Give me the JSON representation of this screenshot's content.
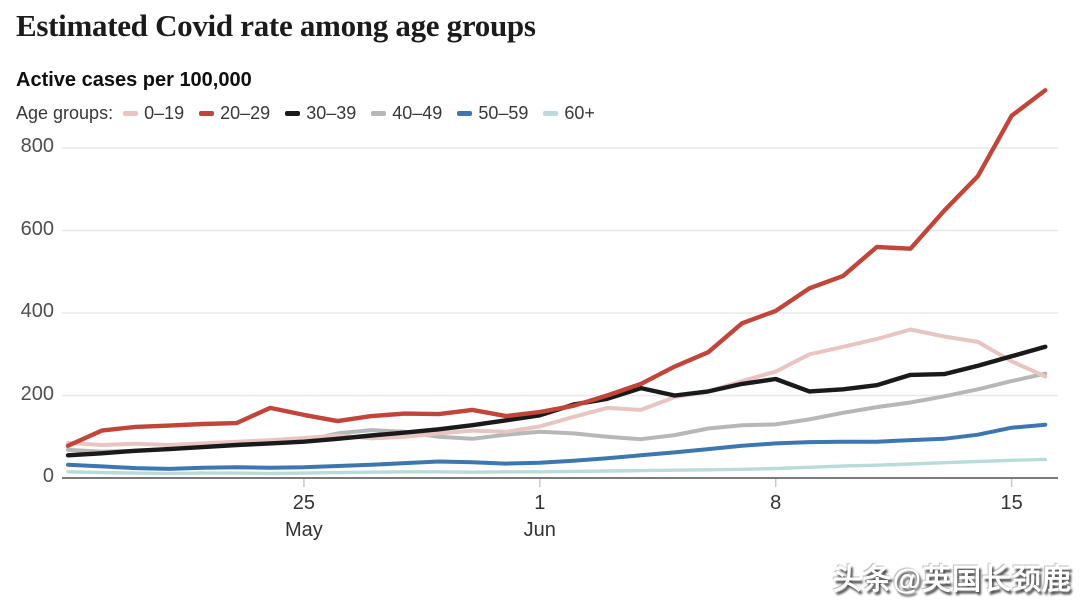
{
  "header": {
    "title": "Estimated Covid rate among age groups",
    "subtitle": "Active cases per 100,000"
  },
  "legend": {
    "label": "Age groups:"
  },
  "chart_data": {
    "type": "line",
    "title": "Estimated Covid rate among age groups",
    "ylabel": "Active cases per 100,000",
    "grid": true,
    "legend_position": "top",
    "ylim": [
      0,
      800
    ],
    "x": [
      "18 May",
      "19 May",
      "20 May",
      "21 May",
      "22 May",
      "23 May",
      "24 May",
      "25 May",
      "26 May",
      "27 May",
      "28 May",
      "29 May",
      "30 May",
      "31 May",
      "1 Jun",
      "2 Jun",
      "3 Jun",
      "4 Jun",
      "5 Jun",
      "6 Jun",
      "7 Jun",
      "8 Jun",
      "9 Jun",
      "10 Jun",
      "11 Jun",
      "12 Jun",
      "13 Jun",
      "14 Jun",
      "15 Jun",
      "16 Jun"
    ],
    "series": [
      {
        "name": "0–19",
        "color": "#e8c5c3",
        "values": [
          85,
          80,
          83,
          80,
          84,
          88,
          92,
          97,
          103,
          96,
          100,
          108,
          115,
          112,
          125,
          148,
          170,
          165,
          196,
          210,
          235,
          258,
          300,
          318,
          337,
          360,
          343,
          330,
          283,
          246
        ]
      },
      {
        "name": "20–29",
        "color": "#c2453a",
        "values": [
          78,
          115,
          124,
          127,
          131,
          133,
          170,
          153,
          138,
          150,
          156,
          155,
          165,
          150,
          160,
          175,
          200,
          228,
          270,
          305,
          375,
          405,
          460,
          490,
          560,
          556,
          648,
          732,
          878,
          940
        ]
      },
      {
        "name": "30–39",
        "color": "#1a1a1a",
        "values": [
          55,
          60,
          66,
          70,
          75,
          80,
          84,
          88,
          95,
          103,
          110,
          118,
          128,
          140,
          152,
          178,
          192,
          218,
          200,
          210,
          228,
          240,
          210,
          215,
          225,
          250,
          252,
          272,
          295,
          318
        ]
      },
      {
        "name": "40–49",
        "color": "#b7b7b7",
        "values": [
          68,
          64,
          66,
          70,
          76,
          82,
          86,
          90,
          108,
          116,
          112,
          100,
          95,
          105,
          112,
          108,
          100,
          94,
          104,
          120,
          128,
          130,
          142,
          158,
          172,
          183,
          198,
          215,
          235,
          253
        ]
      },
      {
        "name": "50–59",
        "color": "#3d76b0",
        "values": [
          32,
          28,
          24,
          22,
          25,
          26,
          25,
          26,
          29,
          32,
          36,
          40,
          38,
          35,
          37,
          42,
          48,
          55,
          62,
          70,
          78,
          84,
          87,
          88,
          88,
          92,
          95,
          105,
          122,
          129
        ]
      },
      {
        "name": "60+",
        "color": "#b9dbda",
        "values": [
          15,
          13,
          12,
          11,
          12,
          12,
          11,
          12,
          13,
          14,
          15,
          15,
          14,
          15,
          15,
          16,
          17,
          18,
          19,
          20,
          21,
          23,
          26,
          29,
          31,
          34,
          37,
          40,
          43,
          45
        ]
      }
    ],
    "yaxis": {
      "ticks": [
        {
          "value": 0,
          "label": "0"
        },
        {
          "value": 200,
          "label": "200"
        },
        {
          "value": 400,
          "label": "400"
        },
        {
          "value": 600,
          "label": "600"
        },
        {
          "value": 800,
          "label": "800"
        }
      ]
    },
    "xaxis": {
      "ticks": [
        {
          "day_index": 7,
          "label": "25",
          "sublabel": "May"
        },
        {
          "day_index": 14,
          "label": "1",
          "sublabel": "Jun"
        },
        {
          "day_index": 21,
          "label": "8",
          "sublabel": ""
        },
        {
          "day_index": 28,
          "label": "15",
          "sublabel": ""
        }
      ]
    }
  },
  "watermark": {
    "text": "头条@英国长颈鹿"
  }
}
